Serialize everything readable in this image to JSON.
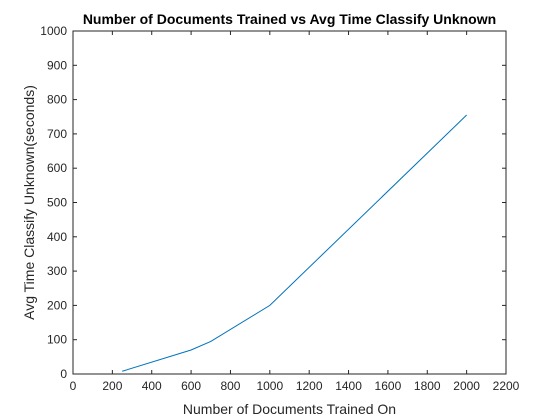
{
  "chart_data": {
    "type": "line",
    "title": "Number of Documents Trained vs Avg Time Classify Unknown",
    "xlabel": "Number of Documents Trained On",
    "ylabel": "Avg Time Classify Unknown(seconds)",
    "xlim": [
      0,
      2200
    ],
    "ylim": [
      0,
      1000
    ],
    "xticks": [
      0,
      200,
      400,
      600,
      800,
      1000,
      1200,
      1400,
      1600,
      1800,
      2000,
      2200
    ],
    "yticks": [
      0,
      100,
      200,
      300,
      400,
      500,
      600,
      700,
      800,
      900,
      1000
    ],
    "grid": false,
    "series": [
      {
        "x": [
          250,
          600,
          700,
          1000,
          2000
        ],
        "y": [
          8,
          70,
          95,
          200,
          755
        ],
        "color": "#0072BD"
      }
    ]
  }
}
